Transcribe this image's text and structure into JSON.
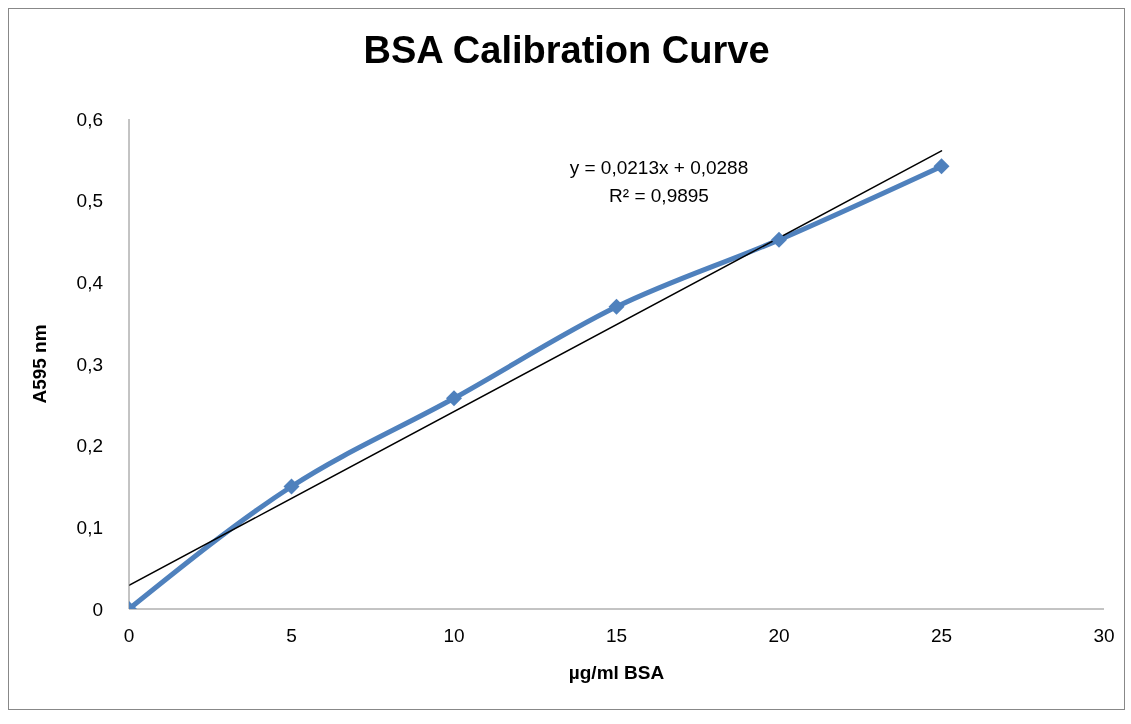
{
  "chart_data": {
    "type": "line",
    "title": "BSA Calibration Curve",
    "xlabel": "µg/ml BSA",
    "ylabel": "A595 nm",
    "x": [
      0,
      5,
      10,
      15,
      20,
      25
    ],
    "series": [
      {
        "color": "#4f81bd",
        "marker": "diamond",
        "line_style": "solid",
        "values": [
          0,
          0.15,
          0.258,
          0.37,
          0.452,
          0.542
        ]
      },
      {
        "color": "#000000",
        "marker": "none",
        "line_style": "solid",
        "x": [
          0,
          25
        ],
        "values": [
          0.029,
          0.561
        ]
      }
    ],
    "xlim": [
      0,
      30
    ],
    "xticks": [
      0,
      5,
      10,
      15,
      20,
      25,
      30
    ],
    "ylim": [
      0,
      0.6
    ],
    "yticks": [
      0,
      {
        "value": 0.1,
        "label": "0,1"
      },
      {
        "value": 0.2,
        "label": "0,2"
      },
      {
        "value": 0.3,
        "label": "0,3"
      },
      {
        "value": 0.4,
        "label": "0,4"
      },
      {
        "value": 0.5,
        "label": "0,5"
      },
      {
        "value": 0.6,
        "label": "0,6"
      }
    ],
    "grid": false,
    "legend": false,
    "annotations": [
      "y = 0,0213x + 0,0288",
      "R² = 0,9895"
    ]
  }
}
